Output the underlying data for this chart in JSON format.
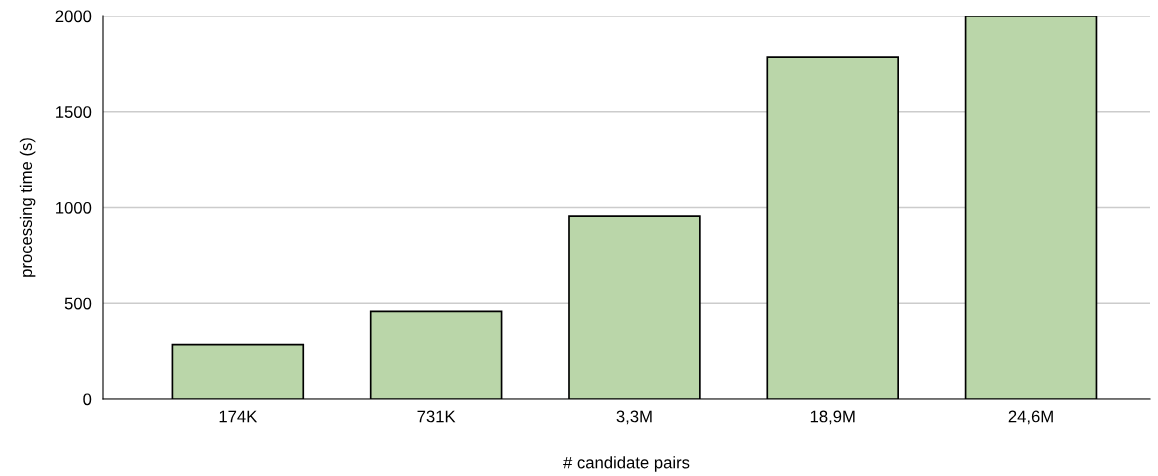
{
  "chart_data": {
    "type": "bar",
    "xlabel": "# candidate pairs",
    "ylabel": "processing time (s)",
    "categories": [
      "174K",
      "731K",
      "3,3M",
      "18,9M",
      "24,6M"
    ],
    "values": [
      284,
      458,
      955,
      1785,
      2000
    ],
    "color": "#bad6a9",
    "ylim": [
      0,
      2000
    ],
    "yticks": [
      0,
      500,
      1000,
      1500,
      2000
    ],
    "grid": "y"
  }
}
